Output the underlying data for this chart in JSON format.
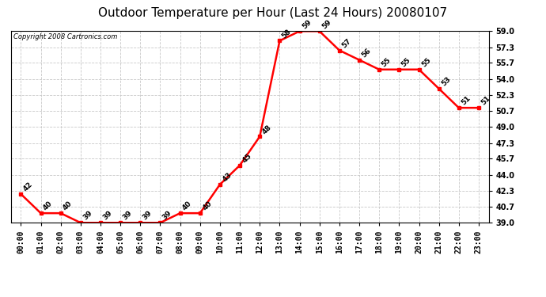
{
  "title": "Outdoor Temperature per Hour (Last 24 Hours) 20080107",
  "copyright": "Copyright 2008 Cartronics.com",
  "hours": [
    "00:00",
    "01:00",
    "02:00",
    "03:00",
    "04:00",
    "05:00",
    "06:00",
    "07:00",
    "08:00",
    "09:00",
    "10:00",
    "11:00",
    "12:00",
    "13:00",
    "14:00",
    "15:00",
    "16:00",
    "17:00",
    "18:00",
    "19:00",
    "20:00",
    "21:00",
    "22:00",
    "23:00"
  ],
  "temps": [
    42,
    40,
    40,
    39,
    39,
    39,
    39,
    39,
    40,
    40,
    43,
    45,
    48,
    58,
    59,
    59,
    57,
    56,
    55,
    55,
    55,
    53,
    51,
    51
  ],
  "ylim": [
    39.0,
    59.0
  ],
  "yticks": [
    39.0,
    40.7,
    42.3,
    44.0,
    45.7,
    47.3,
    49.0,
    50.7,
    52.3,
    54.0,
    55.7,
    57.3,
    59.0
  ],
  "line_color": "red",
  "marker": "s",
  "marker_size": 3,
  "background_color": "#ffffff",
  "grid_color": "#c8c8c8",
  "title_fontsize": 11,
  "label_fontsize": 7,
  "annotation_fontsize": 6.5,
  "copyright_fontsize": 6
}
